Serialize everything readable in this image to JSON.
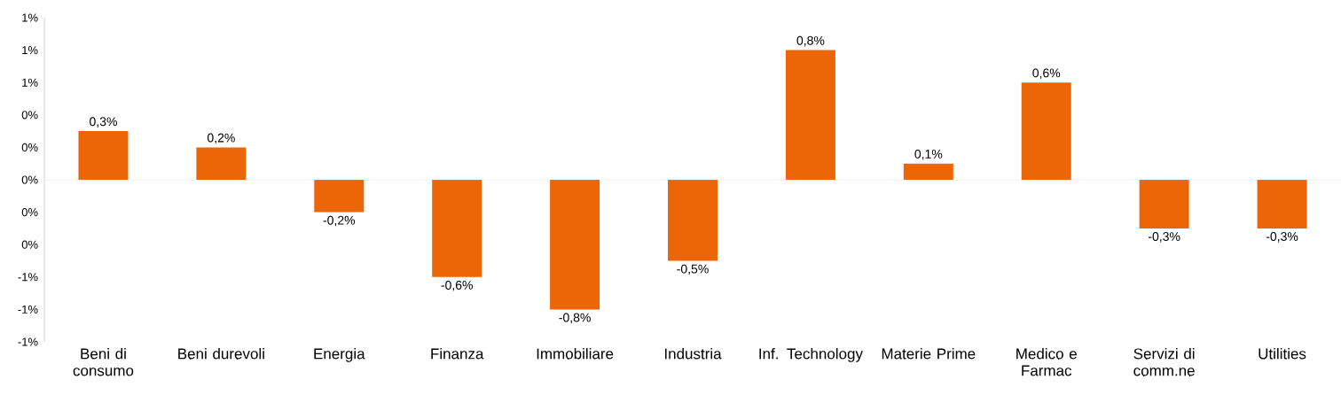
{
  "chart_data": {
    "type": "bar",
    "categories": [
      "Beni di consumo",
      "Beni durevoli",
      "Energia",
      "Finanza",
      "Immobiliare",
      "Industria",
      "Inf. Technology",
      "Materie Prime",
      "Medico e Farmac",
      "Servizi di comm.ne",
      "Utilities"
    ],
    "values": [
      0.3,
      0.2,
      -0.2,
      -0.6,
      -0.8,
      -0.5,
      0.8,
      0.1,
      0.6,
      -0.3,
      -0.3
    ],
    "value_labels": [
      "0,3%",
      "0,2%",
      "-0,2%",
      "-0,6%",
      "-0,8%",
      "-0,5%",
      "0,8%",
      "0,1%",
      "0,6%",
      "-0,3%",
      "-0,3%"
    ],
    "color": "#ec6608",
    "ylim": [
      -1.0,
      1.0
    ],
    "yticks": [
      {
        "value": -1.0,
        "label": "-1%"
      },
      {
        "value": -0.8,
        "label": "-1%"
      },
      {
        "value": -0.6,
        "label": "-1%"
      },
      {
        "value": -0.4,
        "label": "0%"
      },
      {
        "value": -0.2,
        "label": "0%"
      },
      {
        "value": 0,
        "label": "0%"
      },
      {
        "value": 0.2,
        "label": "0%"
      },
      {
        "value": 0.4,
        "label": "0%"
      },
      {
        "value": 0.6,
        "label": "1%"
      },
      {
        "value": 0.8,
        "label": "1%"
      },
      {
        "value": 1.0,
        "label": "1%"
      }
    ]
  }
}
